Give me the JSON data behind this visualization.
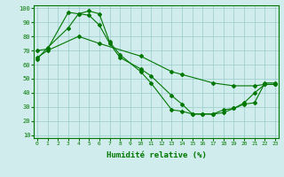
{
  "line1_x": [
    0,
    1,
    3,
    4,
    5,
    6,
    7,
    8,
    10,
    11,
    13,
    14,
    15,
    16,
    17,
    18,
    19,
    20,
    21,
    22,
    23
  ],
  "line1_y": [
    64,
    72,
    86,
    96,
    98,
    96,
    76,
    67,
    55,
    47,
    28,
    27,
    25,
    25,
    25,
    28,
    29,
    33,
    40,
    46,
    46
  ],
  "line2_x": [
    0,
    1,
    3,
    4,
    5,
    6,
    7,
    8,
    10,
    11,
    13,
    14,
    15,
    16,
    17,
    18,
    19,
    20,
    21,
    22,
    23
  ],
  "line2_y": [
    70,
    71,
    97,
    96,
    95,
    88,
    75,
    65,
    57,
    52,
    38,
    32,
    25,
    25,
    25,
    26,
    29,
    32,
    33,
    47,
    47
  ],
  "line3_x": [
    0,
    1,
    4,
    6,
    10,
    13,
    14,
    17,
    19,
    21,
    22,
    23
  ],
  "line3_y": [
    65,
    70,
    80,
    75,
    66,
    55,
    53,
    47,
    45,
    45,
    46,
    46
  ],
  "line_color": "#007700",
  "bg_color": "#d0ecec",
  "grid_color": "#99cccc",
  "xlabel": "Humidité relative (%)",
  "xlim": [
    0,
    23
  ],
  "ylim": [
    10,
    100
  ],
  "yticks": [
    10,
    20,
    30,
    40,
    50,
    60,
    70,
    80,
    90,
    100
  ],
  "xticks": [
    0,
    1,
    2,
    3,
    4,
    5,
    6,
    7,
    8,
    9,
    10,
    11,
    12,
    13,
    14,
    15,
    16,
    17,
    18,
    19,
    20,
    21,
    22,
    23
  ]
}
